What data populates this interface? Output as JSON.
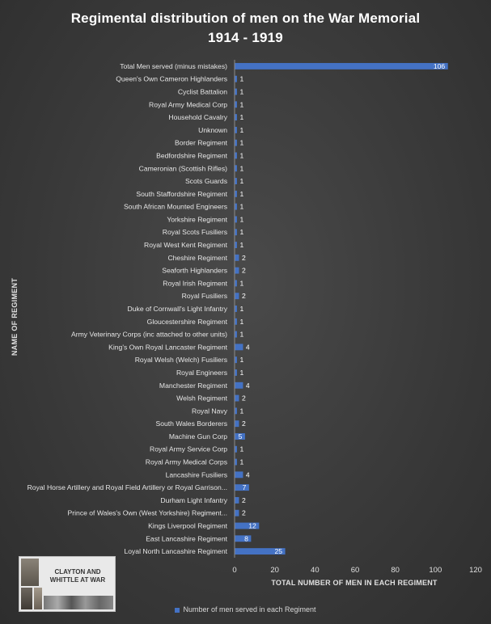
{
  "chart_data": {
    "type": "bar",
    "orientation": "horizontal",
    "title": "Regimental distribution of men on the War Memorial",
    "subtitle": "1914 - 1919",
    "xlabel": "TOTAL NUMBER OF MEN IN EACH REGIMENT",
    "ylabel": "NAME OF REGIMENT",
    "xlim": [
      0,
      120
    ],
    "x_ticks": [
      0,
      20,
      40,
      60,
      80,
      100,
      120
    ],
    "grid": false,
    "legend_position": "bottom",
    "bar_color": "#4472c4",
    "series": [
      {
        "name": "Number of men served in each Regiment",
        "values": [
          106,
          1,
          1,
          1,
          1,
          1,
          1,
          1,
          1,
          1,
          1,
          1,
          1,
          1,
          1,
          2,
          2,
          1,
          2,
          1,
          1,
          1,
          4,
          1,
          1,
          4,
          2,
          1,
          2,
          5,
          1,
          1,
          4,
          7,
          2,
          2,
          12,
          8,
          25
        ]
      }
    ],
    "categories": [
      "Total Men served (minus mistakes)",
      "Queen's Own Cameron Highlanders",
      "Cyclist Battalion",
      "Royal Army Medical Corp",
      "Household Cavalry",
      "Unknown",
      "Border Regiment",
      "Bedfordshire Regiment",
      "Cameronian (Scottish Rifles)",
      "Scots Guards",
      "South Staffordshire Regiment",
      "South African Mounted Engineers",
      "Yorkshire Regiment",
      "Royal Scots Fusiliers",
      "Royal West Kent Regiment",
      "Cheshire Regiment",
      "Seaforth Highlanders",
      "Royal Irish Regiment",
      "Royal Fusiliers",
      "Duke of Cornwall's Light Infantry",
      "Gloucestershire Regiment",
      "Army Veterinary Corps (inc attached to other units)",
      "King's Own Royal Lancaster Regiment",
      "Royal Welsh (Welch) Fusiliers",
      "Royal Engineers",
      "Manchester Regiment",
      "Welsh Regiment",
      "Royal Navy",
      "South Wales Borderers",
      "Machine Gun Corp",
      "Royal Army Service Corp",
      "Royal Army Medical Corps",
      "Lancashire Fusiliers",
      "Royal Horse Artillery and Royal Field Artillery or Royal Garrison...",
      "Durham Light Infantry",
      "Prince of Wales's Own (West Yorkshire) Regiment...",
      "Kings Liverpool Regiment",
      "East Lancashire Regiment",
      "Loyal North Lancashire Regiment"
    ]
  },
  "logo": {
    "text": "CLAYTON AND WHITTLE AT WAR",
    "icon": "clayton-and-whittle-at-war-logo"
  }
}
